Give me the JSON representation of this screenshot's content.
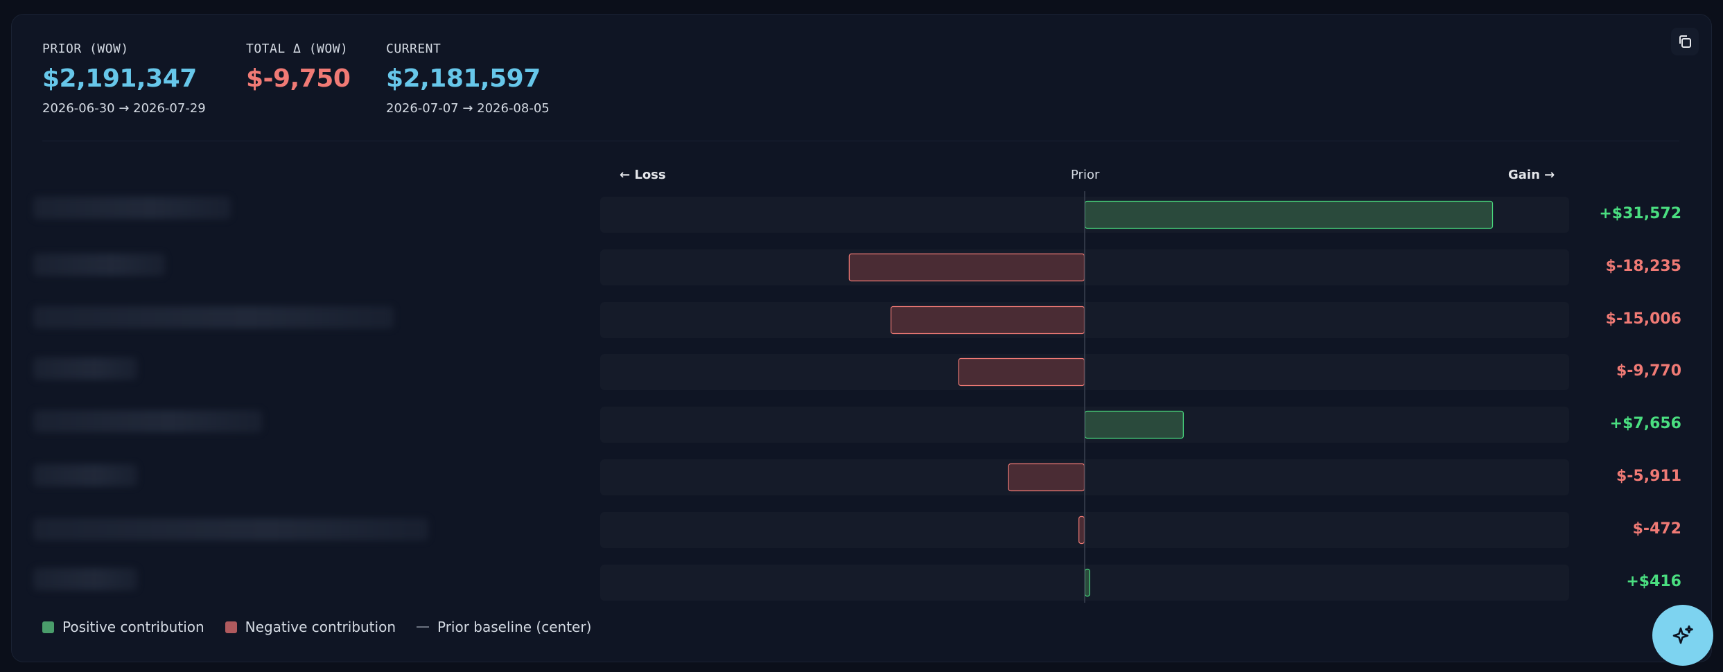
{
  "stats": {
    "prior": {
      "label": "PRIOR (WOW)",
      "value": "$2,191,347",
      "range": "2026-06-30 → 2026-07-29"
    },
    "delta": {
      "label": "TOTAL Δ (WOW)",
      "value": "$-9,750"
    },
    "current": {
      "label": "CURRENT",
      "value": "$2,181,597",
      "range": "2026-07-07 → 2026-08-05"
    }
  },
  "axis": {
    "left": "← Loss",
    "center": "Prior",
    "right": "Gain →"
  },
  "chart_data": {
    "type": "bar",
    "orientation": "horizontal-diverging",
    "baseline": "Prior",
    "max_abs": 31572,
    "values": [
      31572,
      -18235,
      -15006,
      -9770,
      7656,
      -5911,
      -472,
      416
    ],
    "value_labels": [
      "+$31,572",
      "$-18,235",
      "$-15,006",
      "$-9,770",
      "+$7,656",
      "$-5,911",
      "$-472",
      "+$416"
    ]
  },
  "legend": {
    "positive": "Positive contribution",
    "negative": "Negative contribution",
    "baseline": "Prior baseline (center)"
  },
  "colors": {
    "positive": "#4ade80",
    "negative": "#f07a75",
    "accent": "#67c7ea",
    "pos_fill": "#2a4a3c",
    "neg_fill": "#4a2c34"
  },
  "icons": {
    "copy": "copy-icon",
    "assistant": "sparkles-icon"
  }
}
